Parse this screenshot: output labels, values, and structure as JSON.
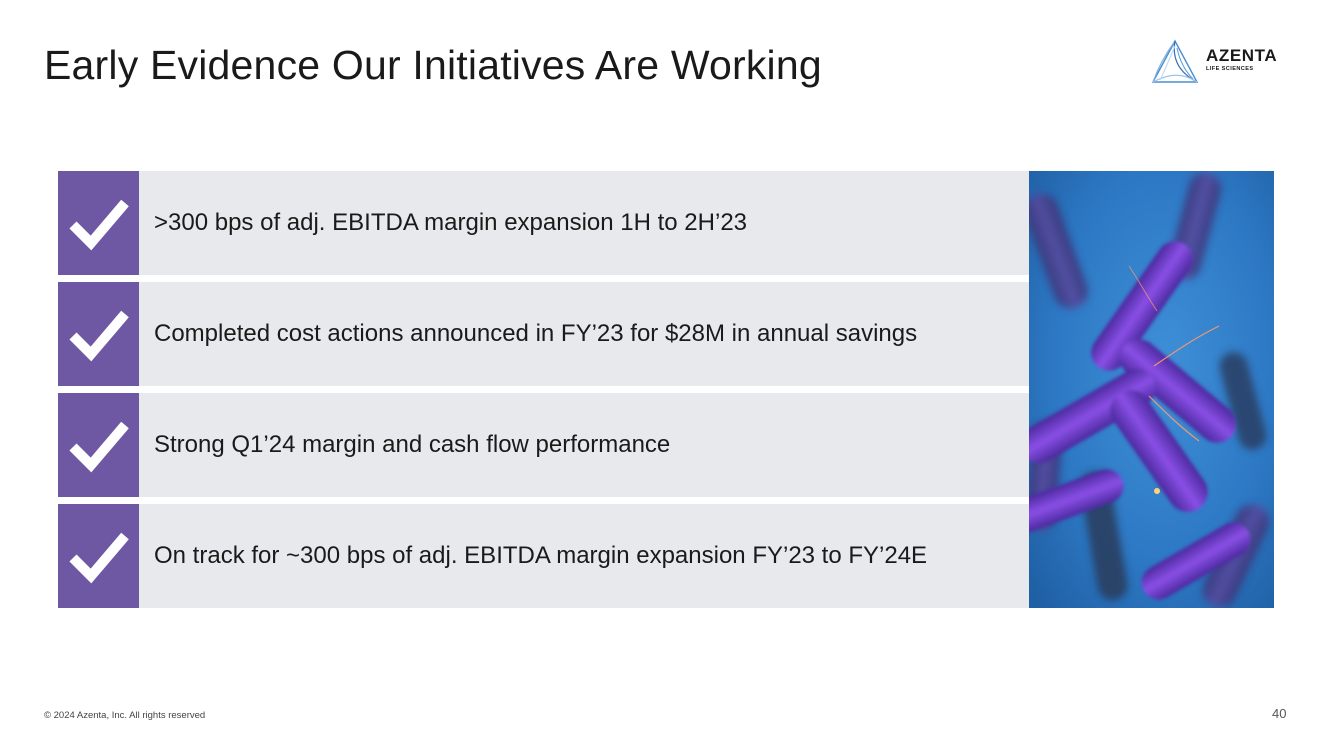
{
  "slide": {
    "title": "Early Evidence Our Initiatives Are Working",
    "logo": {
      "name": "AZENTA",
      "tagline": "LIFE SCIENCES"
    },
    "items": [
      {
        "text": ">300 bps of adj. EBITDA margin expansion 1H to 2H’23"
      },
      {
        "text": "Completed cost actions announced in FY’23 for $28M in annual savings"
      },
      {
        "text": "Strong Q1’24 margin and cash flow performance"
      },
      {
        "text": "On track for ~300 bps of adj. EBITDA margin expansion FY’23 to FY’24E"
      }
    ],
    "footer": "© 2024 Azenta, Inc.  All rights reserved",
    "page_number": "40"
  },
  "colors": {
    "check_background": "#6e58a3",
    "row_background": "#e8e9ec",
    "logo_blue": "#4a8fd0"
  },
  "icons": {
    "item_icon": "checkmark-icon",
    "logo_mark": "azenta-triangle-logo-icon",
    "image": "chromosome-photo"
  }
}
